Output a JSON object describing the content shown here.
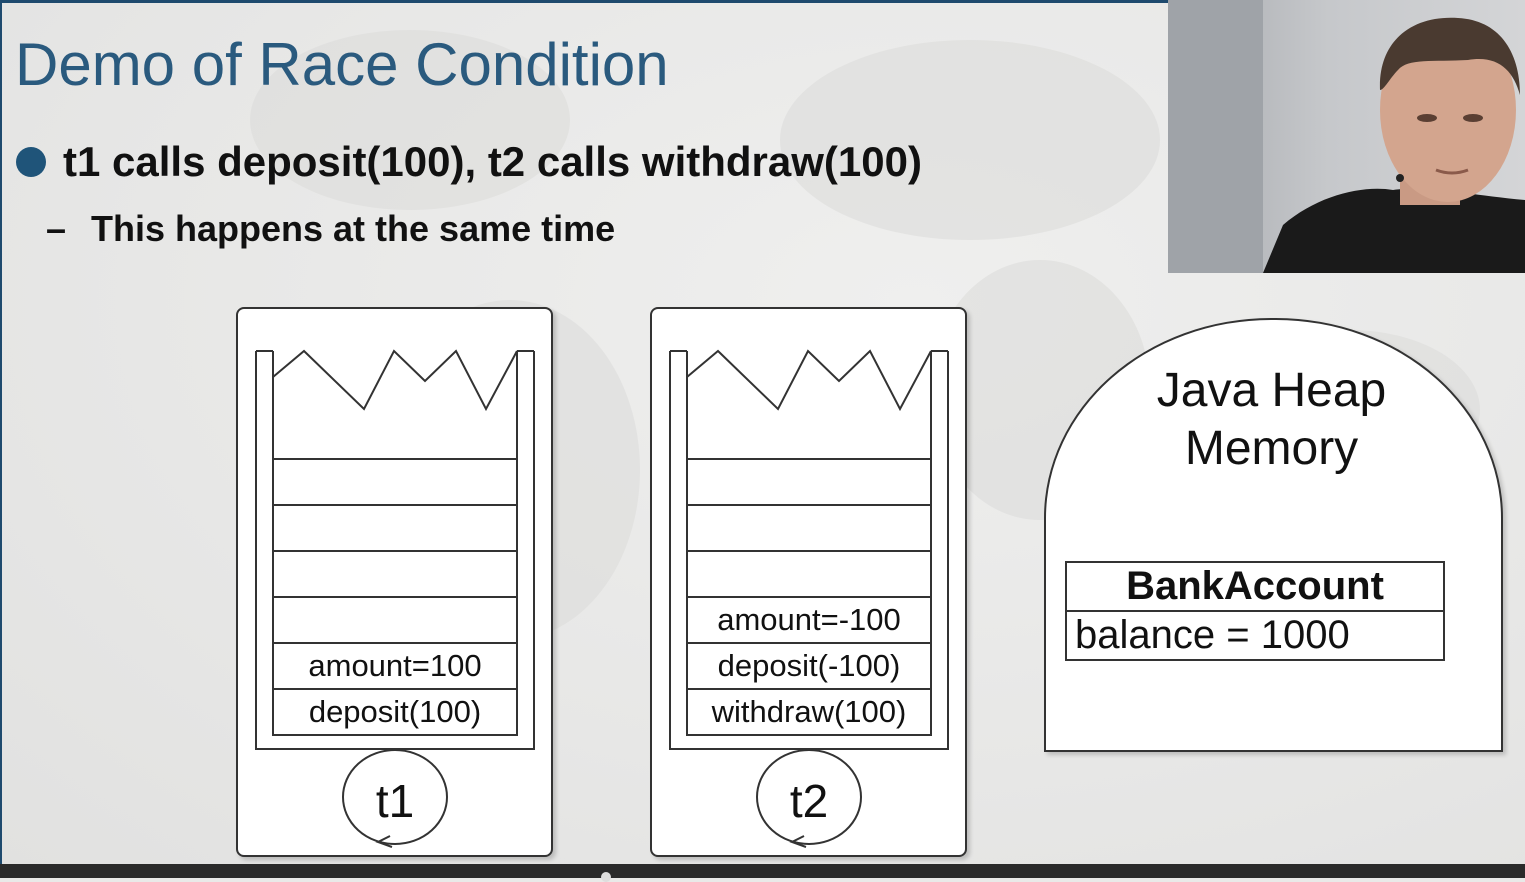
{
  "slide": {
    "title": "Demo of Race Condition",
    "bullet_main": "t1 calls deposit(100), t2 calls withdraw(100)",
    "bullet_sub": "This happens at the same time"
  },
  "thread1": {
    "label": "t1",
    "frames": [
      "amount=100",
      "deposit(100)"
    ]
  },
  "thread2": {
    "label": "t2",
    "frames": [
      "amount=-100",
      "deposit(-100)",
      "withdraw(100)"
    ]
  },
  "heap": {
    "title_line1": "Java Heap",
    "title_line2": "Memory",
    "object_name": "BankAccount",
    "object_field": "balance = 1000"
  },
  "colors": {
    "title": "#2a5a7e",
    "bullet": "#1f5479",
    "accent_line": "#1e4a6e"
  },
  "icons": {
    "webcam": "presenter-video-icon",
    "bullet": "circle-bullet-icon"
  }
}
